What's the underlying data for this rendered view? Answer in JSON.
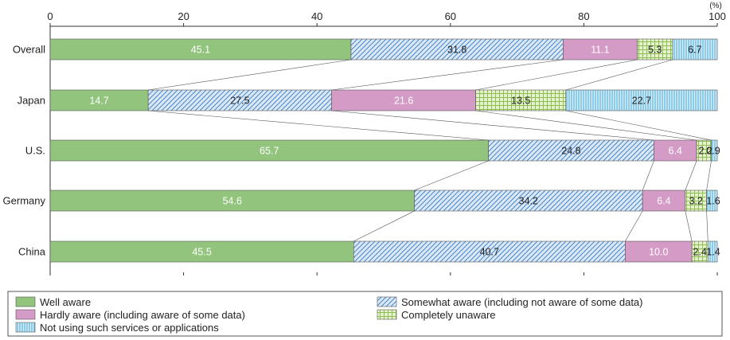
{
  "chart_data": {
    "type": "bar",
    "orientation": "horizontal",
    "stacked": true,
    "unit": "(%)",
    "xlim": [
      0,
      100
    ],
    "xticks": [
      0,
      20,
      40,
      60,
      80,
      100
    ],
    "categories": [
      "Overall",
      "Japan",
      "U.S.",
      "Germany",
      "China"
    ],
    "series": [
      {
        "name": "Well aware",
        "values": [
          45.1,
          14.7,
          65.7,
          54.6,
          45.5
        ],
        "color": "#93c47d",
        "pattern": "solid"
      },
      {
        "name": "Somewhat aware (including not aware of some data)",
        "values": [
          31.8,
          27.5,
          24.8,
          34.2,
          40.7
        ],
        "color": "#9fc5e8",
        "pattern": "diagonal"
      },
      {
        "name": "Hardly aware (including aware of some data)",
        "values": [
          11.1,
          21.6,
          6.4,
          6.4,
          10.0
        ],
        "color": "#d59bc7",
        "pattern": "solid"
      },
      {
        "name": "Completely unaware",
        "values": [
          5.3,
          13.5,
          2.2,
          3.2,
          2.4
        ],
        "color": "#c6e0a0",
        "pattern": "grid"
      },
      {
        "name": "Not using such services or applications",
        "values": [
          6.7,
          22.7,
          0.9,
          1.6,
          1.4
        ],
        "color": "#9fd6ef",
        "pattern": "vertical"
      }
    ],
    "value_labels": [
      [
        "45.1",
        "14.7",
        "65.7",
        "54.6",
        "45.5"
      ],
      [
        "31.8",
        "27.5",
        "24.8",
        "34.2",
        "40.7"
      ],
      [
        "11.1",
        "21.6",
        "6.4",
        "6.4",
        "10.0"
      ],
      [
        "5.3",
        "13.5",
        "2.2",
        "3.2",
        "2.4"
      ],
      [
        "6.7",
        "22.7",
        "0.9",
        "1.6",
        "1.4"
      ]
    ],
    "legend": {
      "position": "bottom"
    },
    "grid": false
  }
}
